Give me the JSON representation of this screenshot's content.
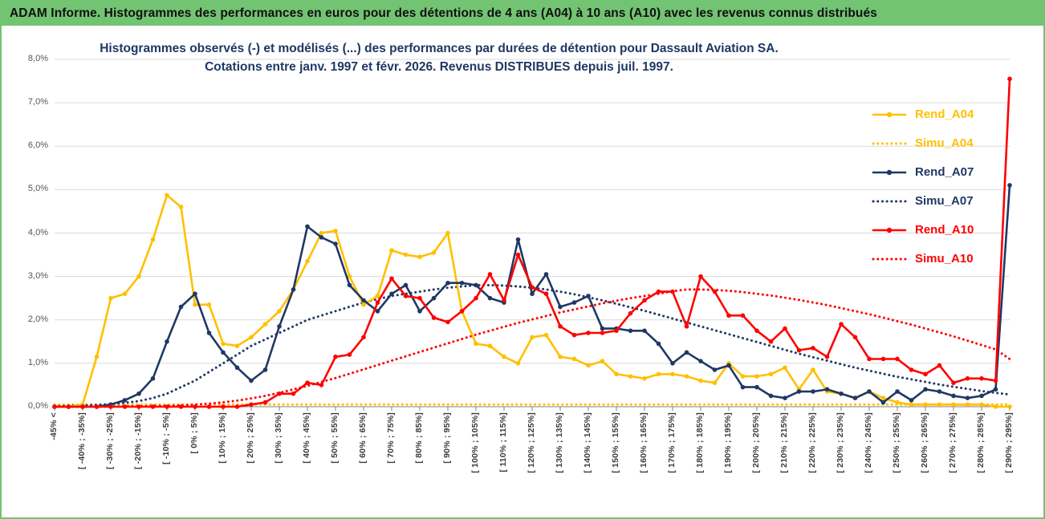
{
  "header": {
    "title": "ADAM Informe. Histogrammes des performances en euros pour des détentions de 4 ans (A04) à 10 ans (A10) avec les revenus connus distribués",
    "background_color": "#72C472"
  },
  "chart_data": {
    "type": "line",
    "title": "Histogrammes observés (-) et modélisés (...) des performances par durées de détention pour Dassault Aviation SA.",
    "subtitle": "Cotations entre janv. 1997 et févr. 2026.  Revenus DISTRIBUES depuis juil. 1997.",
    "ylabel": "",
    "xlabel": "",
    "ylim": [
      0,
      8
    ],
    "y_ticks": [
      "0,0%",
      "1,0%",
      "2,0%",
      "3,0%",
      "4,0%",
      "5,0%",
      "6,0%",
      "7,0%",
      "8,0%"
    ],
    "grid": true,
    "legend_position": "right",
    "bucket_width_pct": 5,
    "labels_every": 2,
    "n_points": 69,
    "categories": [
      "-45% <",
      "[ -40% ; -35%]",
      "[ -30% ; -25%]",
      "[ -20% ; -15%]",
      "[ -10% ; -5%]",
      "[ 0% ; 5%]",
      "[ 10% ; 15%]",
      "[ 20% ; 25%]",
      "[ 30% ; 35%]",
      "[ 40% ; 45%]",
      "[ 50% ; 55%]",
      "[ 60% ; 65%]",
      "[ 70% ; 75%]",
      "[ 80% ; 85%]",
      "[ 90% ; 95%]",
      "[ 100% ; 105%]",
      "[ 110% ; 115%]",
      "[ 120% ; 125%]",
      "[ 130% ; 135%]",
      "[ 140% ; 145%]",
      "[ 150% ; 155%]",
      "[ 160% ; 165%]",
      "[ 170% ; 175%]",
      "[ 180% ; 185%]",
      "[ 190% ; 195%]",
      "[ 200% ; 205%]",
      "[ 210% ; 215%]",
      "[ 220% ; 225%]",
      "[ 230% ; 235%]",
      "[ 240% ; 245%]",
      "[ 250% ; 255%]",
      "[ 260% ; 265%]",
      "[ 270% ; 275%]",
      "[ 280% ; 285%]",
      "[ 290% ; 295%]"
    ],
    "series": [
      {
        "name": "Rend_A04",
        "style": "solid",
        "color": "#FFC000",
        "values": [
          0,
          0,
          0.05,
          1.15,
          2.5,
          2.6,
          3.0,
          3.85,
          4.87,
          4.6,
          2.35,
          2.35,
          1.45,
          1.4,
          1.6,
          1.9,
          2.2,
          2.7,
          3.35,
          4.0,
          4.05,
          3.0,
          2.35,
          2.55,
          3.6,
          3.5,
          3.45,
          3.55,
          4.0,
          2.2,
          1.45,
          1.4,
          1.15,
          1.0,
          1.6,
          1.65,
          1.15,
          1.1,
          0.95,
          1.05,
          0.75,
          0.7,
          0.65,
          0.75,
          0.75,
          0.7,
          0.6,
          0.55,
          1.0,
          0.7,
          0.7,
          0.75,
          0.9,
          0.4,
          0.85,
          0.35,
          0.3,
          0.2,
          0.35,
          0.2,
          0.1,
          0.05,
          0.05,
          0.05,
          0.05,
          0.05,
          0.05,
          0,
          0
        ]
      },
      {
        "name": "Simu_A04",
        "style": "dotted",
        "color": "#FFC000",
        "values": [
          0.05,
          0.05,
          0.05,
          0.05,
          0.05,
          0.05,
          0.05,
          0.05,
          0.05,
          0.05,
          0.05,
          0.05,
          0.05,
          0.05,
          0.05,
          0.05,
          0.05,
          0.05,
          0.05,
          0.05,
          0.05,
          0.05,
          0.05,
          0.05,
          0.05,
          0.05,
          0.05,
          0.05,
          0.05,
          0.05,
          0.05,
          0.05,
          0.05,
          0.05,
          0.05,
          0.05,
          0.05,
          0.05,
          0.05,
          0.05,
          0.05,
          0.05,
          0.05,
          0.05,
          0.05,
          0.05,
          0.05,
          0.05,
          0.05,
          0.05,
          0.05,
          0.05,
          0.05,
          0.05,
          0.05,
          0.05,
          0.05,
          0.05,
          0.05,
          0.05,
          0.05,
          0.05,
          0.05,
          0.05,
          0.05,
          0.05,
          0.05,
          0.05,
          0.05
        ]
      },
      {
        "name": "Rend_A07",
        "style": "solid",
        "color": "#1F3864",
        "values": [
          0,
          0,
          0,
          0,
          0.05,
          0.15,
          0.3,
          0.65,
          1.5,
          2.3,
          2.6,
          1.7,
          1.25,
          0.9,
          0.6,
          0.85,
          1.85,
          2.7,
          4.15,
          3.9,
          3.75,
          2.8,
          2.45,
          2.2,
          2.6,
          2.8,
          2.2,
          2.5,
          2.85,
          2.85,
          2.8,
          2.5,
          2.4,
          3.85,
          2.6,
          3.05,
          2.3,
          2.4,
          2.55,
          1.8,
          1.8,
          1.75,
          1.75,
          1.45,
          1.0,
          1.25,
          1.05,
          0.85,
          0.95,
          0.45,
          0.45,
          0.25,
          0.2,
          0.35,
          0.35,
          0.4,
          0.3,
          0.2,
          0.35,
          0.1,
          0.35,
          0.15,
          0.4,
          0.35,
          0.25,
          0.2,
          0.25,
          0.4,
          5.1
        ]
      },
      {
        "name": "Simu_A07",
        "style": "dotted",
        "color": "#1F3864",
        "values": [
          0.01,
          0.02,
          0.03,
          0.04,
          0.06,
          0.09,
          0.13,
          0.2,
          0.3,
          0.45,
          0.6,
          0.8,
          1.0,
          1.2,
          1.4,
          1.55,
          1.7,
          1.85,
          2.0,
          2.1,
          2.2,
          2.3,
          2.4,
          2.48,
          2.55,
          2.6,
          2.65,
          2.7,
          2.74,
          2.77,
          2.8,
          2.8,
          2.79,
          2.77,
          2.74,
          2.7,
          2.65,
          2.59,
          2.52,
          2.45,
          2.37,
          2.29,
          2.21,
          2.12,
          2.03,
          1.94,
          1.85,
          1.76,
          1.67,
          1.58,
          1.49,
          1.4,
          1.31,
          1.22,
          1.14,
          1.06,
          0.98,
          0.9,
          0.83,
          0.76,
          0.69,
          0.63,
          0.57,
          0.51,
          0.46,
          0.41,
          0.36,
          0.32,
          0.28
        ]
      },
      {
        "name": "Rend_A10",
        "style": "solid",
        "color": "#FF0000",
        "values": [
          0,
          0,
          0,
          0,
          0,
          0,
          0,
          0,
          0,
          0,
          0,
          0,
          0,
          0,
          0.05,
          0.1,
          0.3,
          0.3,
          0.55,
          0.5,
          1.15,
          1.2,
          1.6,
          2.4,
          2.95,
          2.55,
          2.5,
          2.05,
          1.95,
          2.2,
          2.5,
          3.05,
          2.45,
          3.5,
          2.75,
          2.6,
          1.85,
          1.65,
          1.7,
          1.7,
          1.75,
          2.15,
          2.45,
          2.65,
          2.65,
          1.85,
          3.0,
          2.65,
          2.1,
          2.1,
          1.75,
          1.5,
          1.8,
          1.3,
          1.35,
          1.15,
          1.9,
          1.6,
          1.1,
          1.1,
          1.1,
          0.85,
          0.75,
          0.95,
          0.55,
          0.65,
          0.65,
          0.6,
          7.55
        ]
      },
      {
        "name": "Simu_A10",
        "style": "dotted",
        "color": "#FF0000",
        "values": [
          0,
          0,
          0,
          0,
          0,
          0.01,
          0.01,
          0.02,
          0.02,
          0.03,
          0.05,
          0.07,
          0.1,
          0.14,
          0.19,
          0.25,
          0.32,
          0.4,
          0.48,
          0.57,
          0.66,
          0.76,
          0.86,
          0.96,
          1.06,
          1.16,
          1.26,
          1.36,
          1.46,
          1.56,
          1.66,
          1.75,
          1.84,
          1.93,
          2.01,
          2.09,
          2.17,
          2.24,
          2.31,
          2.38,
          2.44,
          2.5,
          2.55,
          2.6,
          2.66,
          2.7,
          2.7,
          2.69,
          2.67,
          2.64,
          2.6,
          2.56,
          2.51,
          2.46,
          2.4,
          2.34,
          2.27,
          2.2,
          2.13,
          2.05,
          1.97,
          1.89,
          1.8,
          1.71,
          1.62,
          1.52,
          1.42,
          1.32,
          1.1
        ]
      }
    ]
  }
}
